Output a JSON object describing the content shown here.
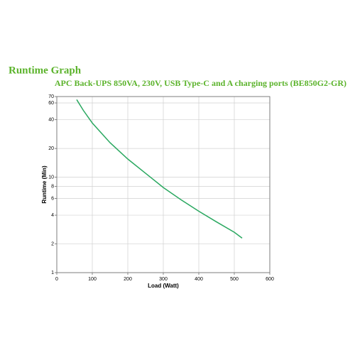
{
  "chart_data": {
    "type": "line",
    "title": "Runtime Graph",
    "subtitle": "APC Back-UPS 850VA, 230V, USB Type-C and A charging ports (BE850G2-GR)",
    "x_label": "Load (Watt)",
    "y_label": "Runtime (Min)",
    "log_y": true,
    "grid": true,
    "xlim": [
      0,
      600
    ],
    "xticks": [
      0,
      100,
      200,
      300,
      400,
      500,
      600
    ],
    "ylim": [
      1,
      70
    ],
    "yticks": [
      1,
      2,
      4,
      6,
      8,
      10,
      20,
      40,
      60,
      70
    ],
    "x": [
      56,
      75,
      100,
      150,
      200,
      250,
      300,
      350,
      400,
      450,
      500,
      522
    ],
    "series": [
      {
        "color": "#2aa860",
        "values": [
          65,
          50,
          37,
          23,
          15.5,
          11,
          7.8,
          5.8,
          4.4,
          3.4,
          2.65,
          2.3
        ]
      }
    ]
  }
}
